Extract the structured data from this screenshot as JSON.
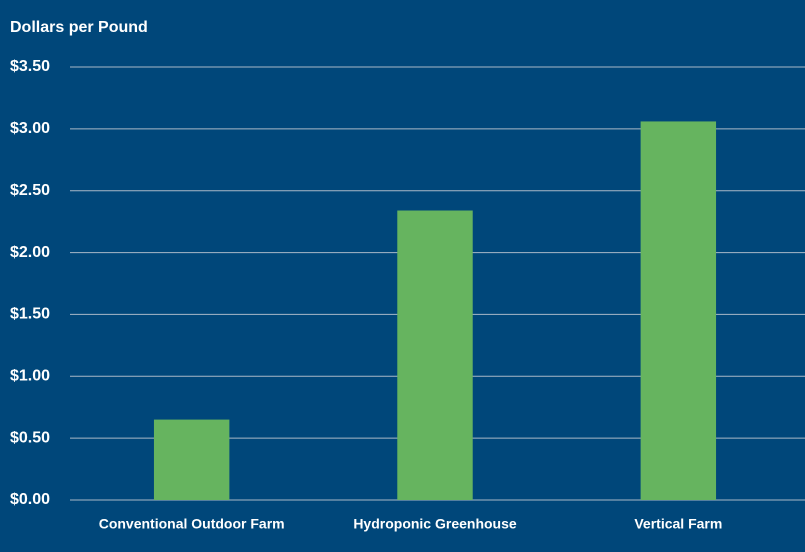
{
  "chart_data": {
    "type": "bar",
    "y_label": "Dollars per Pound",
    "categories": [
      "Conventional Outdoor Farm",
      "Hydroponic Greenhouse",
      "Vertical Farm"
    ],
    "values": [
      0.65,
      2.34,
      3.06
    ],
    "color": "#66b45f",
    "ylim": [
      0,
      3.5
    ],
    "yticks": [
      {
        "value": 0,
        "label": "$0.00"
      },
      {
        "value": 0.5,
        "label": "$0.50"
      },
      {
        "value": 1,
        "label": "$1.00"
      },
      {
        "value": 1.5,
        "label": "$1.50"
      },
      {
        "value": 2,
        "label": "$2.00"
      },
      {
        "value": 2.5,
        "label": "$2.50"
      },
      {
        "value": 3,
        "label": "$3.00"
      },
      {
        "value": 3.5,
        "label": "$3.50"
      }
    ],
    "grid": true
  }
}
